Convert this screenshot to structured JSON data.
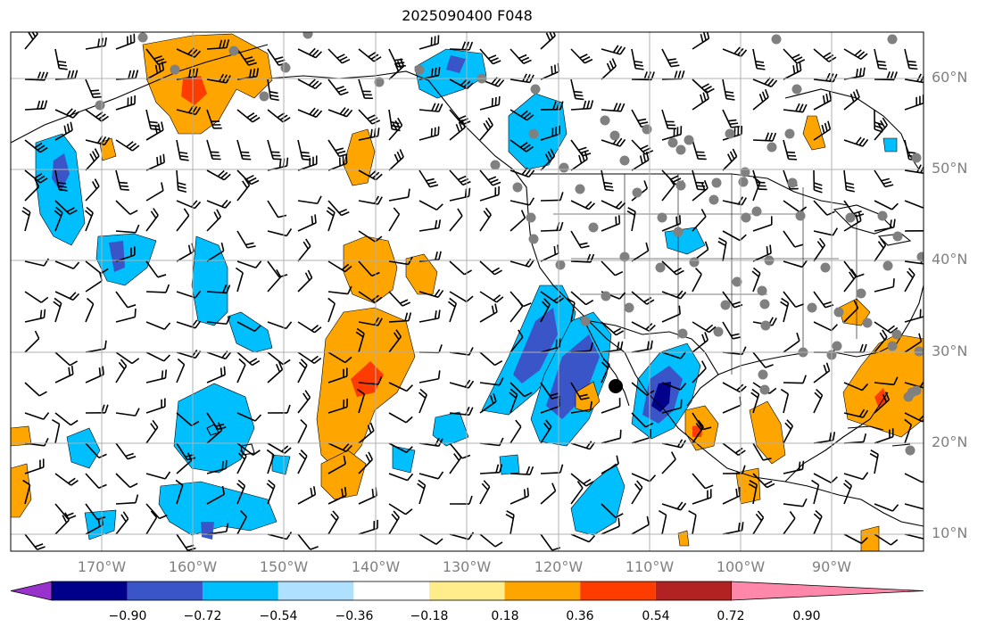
{
  "title": "2025090400 F048",
  "latitude_labels": [
    "60°N",
    "50°N",
    "40°N",
    "30°N",
    "20°N",
    "10°N"
  ],
  "longitude_labels": [
    "170°W",
    "160°W",
    "150°W",
    "140°W",
    "130°W",
    "120°W",
    "110°W",
    "100°W",
    "90°W"
  ],
  "colorbar": {
    "tick_labels": [
      "−0.90",
      "−0.72",
      "−0.54",
      "−0.36",
      "−0.18",
      "0.18",
      "0.36",
      "0.54",
      "0.72",
      "0.90"
    ],
    "bin_colors": [
      "#9932cc",
      "#00008b",
      "#3a55c8",
      "#00bfff",
      "#b0e0ff",
      "#ffffff",
      "#ffec8b",
      "#ffa500",
      "#ff3c00",
      "#b22222",
      "#ff88aa"
    ]
  },
  "map_colors": {
    "ocean": "#ffffff",
    "grid": "#b0b0b0",
    "coast": "#000000",
    "station": "#808080",
    "barb": "#000000"
  }
}
